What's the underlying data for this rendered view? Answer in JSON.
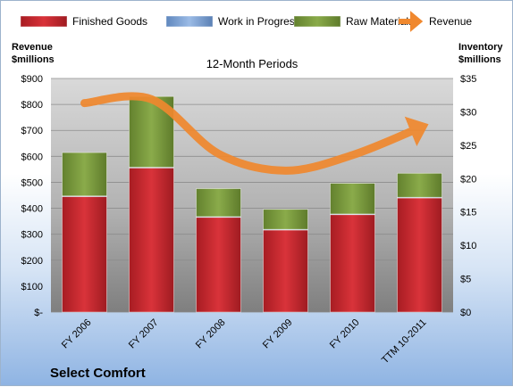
{
  "chart_data": {
    "type": "bar",
    "title": "Select Comfort",
    "subtitle": "12-Month Periods",
    "categories": [
      "FY 2006",
      "FY 2007",
      "FY 2008",
      "FY 2009",
      "FY 2010",
      "TTM 10-2011"
    ],
    "stacked": true,
    "series": [
      {
        "name": "Finished Goods",
        "axis": "right",
        "color": "#c0222a",
        "values": [
          17.3,
          21.6,
          14.2,
          12.3,
          14.6,
          17.1
        ]
      },
      {
        "name": "Work in Progress",
        "axis": "right",
        "color": "#7aa2d4",
        "values": [
          0.1,
          0.1,
          0.1,
          0.1,
          0.1,
          0.1
        ]
      },
      {
        "name": "Raw Materials",
        "axis": "right",
        "color": "#7a9a3c",
        "values": [
          6.5,
          10.6,
          4.2,
          3.0,
          4.6,
          3.6
        ]
      },
      {
        "name": "Revenue",
        "axis": "left",
        "type": "line",
        "color": "#f0882e",
        "values": [
          805,
          820,
          610,
          545,
          605,
          710
        ]
      }
    ],
    "ylabel_left": "Revenue\n$millions",
    "ylabel_right": "Inventory\n$millions",
    "ylim_left": [
      0,
      900
    ],
    "ylim_right": [
      0,
      35
    ],
    "yticks_left": [
      "$-",
      "$100",
      "$200",
      "$300",
      "$400",
      "$500",
      "$600",
      "$700",
      "$800",
      "$900"
    ],
    "yticks_right": [
      "$0",
      "$5",
      "$10",
      "$15",
      "$20",
      "$25",
      "$30",
      "$35"
    ],
    "grid": true,
    "legend_position": "top"
  }
}
